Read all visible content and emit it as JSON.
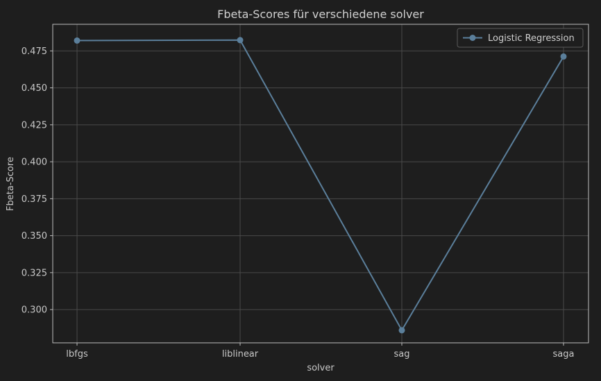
{
  "chart_data": {
    "type": "line",
    "title": "Fbeta-Scores für verschiedene solver",
    "xlabel": "solver",
    "ylabel": "Fbeta-Score",
    "categories": [
      "lbfgs",
      "liblinear",
      "sag",
      "saga"
    ],
    "series": [
      {
        "name": "Logistic Regression",
        "values": [
          0.482,
          0.4823,
          0.286,
          0.4712
        ],
        "color": "#5b7f9b"
      }
    ],
    "ylim": [
      0.2775,
      0.493
    ],
    "yticks": [
      "0.300",
      "0.325",
      "0.350",
      "0.375",
      "0.400",
      "0.425",
      "0.450",
      "0.475"
    ],
    "grid": true,
    "legend_position": "top-right",
    "background_color": "#1e1e1e",
    "text_color": "#c8c8c8"
  }
}
